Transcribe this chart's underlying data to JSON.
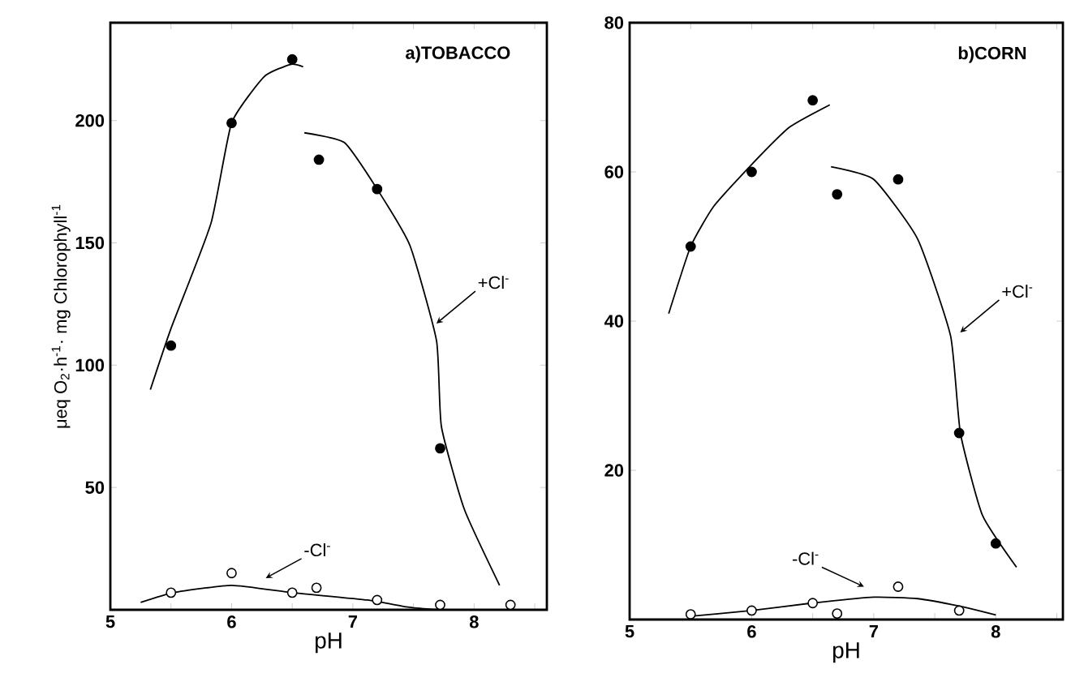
{
  "chart_data": [
    {
      "type": "scatter",
      "title": "a)TOBACCO",
      "xlabel": "pH",
      "ylabel": "μeq O$_{2}$·h$^{-1}$· mg Chlorophyll$^{-1}$",
      "xlim": [
        5,
        8.6
      ],
      "ylim": [
        0,
        240
      ],
      "xticks": [
        5,
        {
          "value": 5.5,
          "label": null
        },
        6,
        {
          "value": 6.5,
          "label": null
        },
        7,
        {
          "value": 7.5,
          "label": null
        },
        8,
        {
          "value": 8.5,
          "label": null
        }
      ],
      "yticks": [
        50,
        100,
        150,
        200
      ],
      "series": [
        {
          "marker": "circle",
          "color": "#000000",
          "x": [
            5.5,
            6.0,
            6.5,
            6.72,
            7.2,
            7.72
          ],
          "values": [
            108,
            199,
            225,
            184,
            172,
            66
          ]
        },
        {
          "marker": "circle",
          "color": "#ffffff",
          "x": [
            5.5,
            6.0,
            6.5,
            6.7,
            7.2,
            7.72,
            8.3
          ],
          "values": [
            7,
            15,
            7,
            9,
            4,
            2,
            2
          ]
        },
        {
          "type": "line",
          "color": "#000000",
          "x": [
            5.33,
            5.5,
            5.83,
            6.0,
            6.27,
            6.49,
            6.59
          ],
          "values": [
            90,
            115,
            158,
            199,
            218,
            223,
            222
          ]
        },
        {
          "type": "line",
          "color": "#000000",
          "x": [
            6.6,
            6.93,
            7.2,
            7.47,
            7.69,
            7.73,
            7.92,
            8.21
          ],
          "values": [
            195,
            191,
            172,
            149,
            110,
            75,
            41,
            10
          ]
        },
        {
          "type": "line",
          "color": "#000000",
          "x": [
            5.25,
            5.52,
            6.0,
            6.5,
            7.12,
            7.47,
            7.73
          ],
          "values": [
            3,
            7,
            10,
            7,
            4,
            1,
            0
          ]
        }
      ],
      "annotations": [
        "+Cl$^{-}$",
        "-Cl$^{-}$"
      ]
    },
    {
      "type": "scatter",
      "title": "b)CORN",
      "xlabel": "pH",
      "xlim": [
        5,
        8.55
      ],
      "ylim": [
        0,
        80
      ],
      "xticks": [
        5,
        {
          "value": 5.5,
          "label": null
        },
        6,
        {
          "value": 6.5,
          "label": null
        },
        7,
        {
          "value": 7.5,
          "label": null
        },
        8,
        {
          "value": 8.5,
          "label": null
        }
      ],
      "yticks": [
        20,
        40,
        60,
        80
      ],
      "series": [
        {
          "marker": "circle",
          "color": "#000000",
          "x": [
            5.5,
            6.0,
            6.5,
            6.7,
            7.2,
            7.7,
            8.0
          ],
          "values": [
            50,
            60,
            69.6,
            57,
            59,
            25,
            10.2
          ]
        },
        {
          "marker": "circle",
          "color": "#ffffff",
          "x": [
            5.5,
            6.0,
            6.5,
            6.7,
            7.2,
            7.7
          ],
          "values": [
            0.7,
            1.2,
            2.2,
            0.8,
            4.4,
            1.2
          ]
        },
        {
          "type": "line",
          "color": "#000000",
          "x": [
            5.32,
            5.5,
            5.69,
            6.0,
            6.31,
            6.64
          ],
          "values": [
            41,
            50,
            55.4,
            61,
            66,
            69
          ]
        },
        {
          "type": "line",
          "color": "#000000",
          "x": [
            6.65,
            7.0,
            7.36,
            7.63,
            7.71,
            7.89,
            8.17
          ],
          "values": [
            60.7,
            59,
            51,
            38,
            25,
            14,
            7
          ]
        },
        {
          "type": "line",
          "color": "#000000",
          "x": [
            5.47,
            6.0,
            6.49,
            7.0,
            7.36,
            7.7,
            8.0
          ],
          "values": [
            0.4,
            1.2,
            2.2,
            3.0,
            2.8,
            1.8,
            0.6
          ]
        }
      ],
      "annotations": [
        "+Cl$^{-}$",
        "-Cl$^{-}$"
      ]
    }
  ]
}
